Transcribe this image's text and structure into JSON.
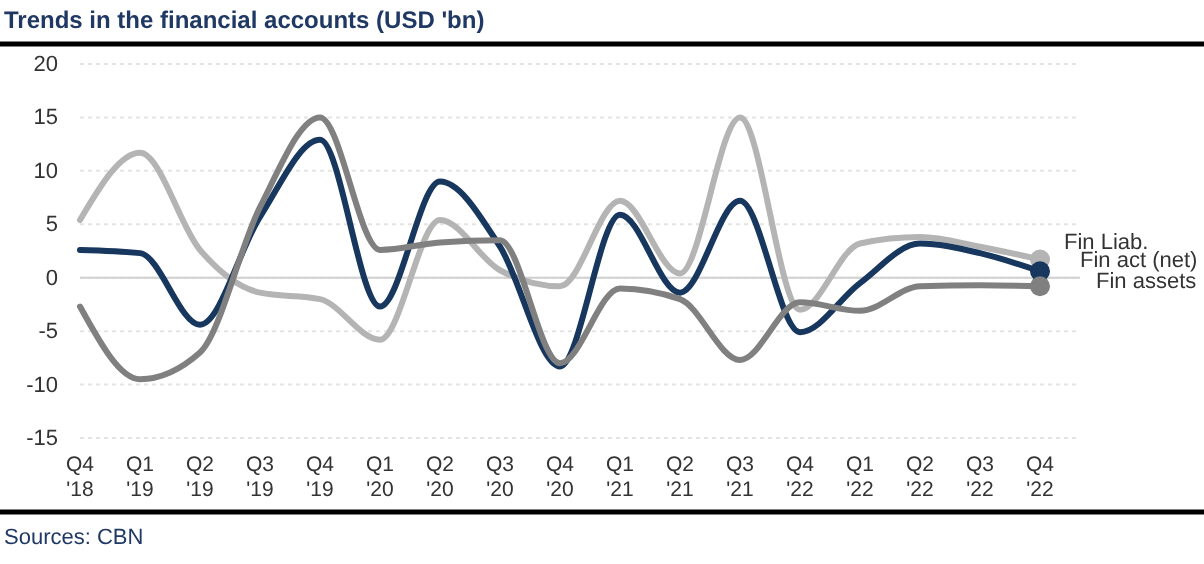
{
  "chart_data": {
    "type": "line",
    "title": "Trends in the financial accounts (USD 'bn)",
    "categories": [
      "Q4 '18",
      "Q1 '19",
      "Q2 '19",
      "Q3 '19",
      "Q4 '19",
      "Q1 '20",
      "Q2 '20",
      "Q3 '20",
      "Q4 '20",
      "Q1 '21",
      "Q2 '21",
      "Q3 '21",
      "Q4 '22",
      "Q1 '22",
      "Q2 '22",
      "Q3 '22",
      "Q4 '22"
    ],
    "series": [
      {
        "name": "Fin Liab.",
        "color": "#b4b4b4",
        "values": [
          5.4,
          11.7,
          2.6,
          -1.4,
          -2,
          -5.8,
          5.4,
          0.7,
          -0.8,
          7.2,
          0.4,
          15,
          -3,
          3.2,
          3.8,
          2.9,
          1.7
        ]
      },
      {
        "name": "Fin act (net)",
        "color": "#17375e",
        "values": [
          2.6,
          2.3,
          -4.4,
          5.7,
          12.9,
          -2.7,
          9,
          2.9,
          -8.3,
          5.9,
          -1.4,
          7.2,
          -5.1,
          -0.5,
          3.2,
          2.3,
          0.6
        ]
      },
      {
        "name": "Fin assets",
        "color": "#808080",
        "values": [
          -2.7,
          -9.5,
          -7,
          6.6,
          15,
          2.6,
          3.3,
          3.5,
          -8,
          -1,
          -2,
          -7.7,
          -2.3,
          -3.1,
          -0.8,
          -0.7,
          -0.8
        ]
      }
    ],
    "ylim": [
      -15,
      20
    ],
    "yticks": [
      -15,
      -10,
      -5,
      0,
      5,
      10,
      15,
      20
    ],
    "grid": "y",
    "legend": false,
    "annotations": [
      "Sources: CBN"
    ]
  }
}
